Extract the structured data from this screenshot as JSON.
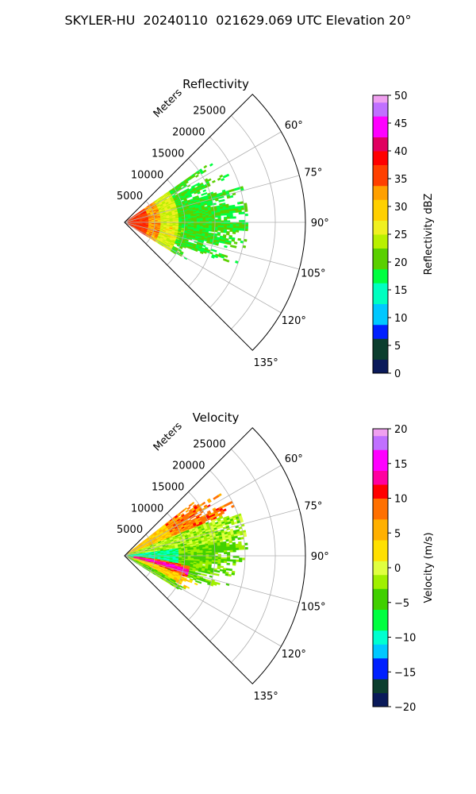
{
  "figure_title": "SKYLER-HU  20240110  021629.069 UTC Elevation 20°",
  "chart_data": [
    {
      "type": "heatmap",
      "title": "Reflectivity",
      "r_axis_label": "Meters",
      "r_ticks": [
        5000,
        10000,
        15000,
        20000,
        25000
      ],
      "r_tick_labels": [
        "5000",
        "10000",
        "15000",
        "20000",
        "25000"
      ],
      "theta_range_deg": [
        45,
        135
      ],
      "theta_ticks_deg": [
        60,
        75,
        90,
        105,
        120,
        135
      ],
      "theta_tick_labels": [
        "60°",
        "75°",
        "90°",
        "105°",
        "120°",
        "135°"
      ],
      "grid": true,
      "colorbar": {
        "label": "Reflectivity dBZ",
        "min": 0,
        "max": 50,
        "ticks": [
          0,
          5,
          10,
          15,
          20,
          25,
          30,
          35,
          40,
          45,
          50
        ],
        "tick_labels": [
          "0",
          "5",
          "10",
          "15",
          "20",
          "25",
          "30",
          "35",
          "40",
          "45",
          "50"
        ]
      },
      "colormap": [
        [
          0,
          "#0a1a5a"
        ],
        [
          3,
          "#0c3e2e"
        ],
        [
          6,
          "#0020ff"
        ],
        [
          9,
          "#00c8ff"
        ],
        [
          13,
          "#00ffc0"
        ],
        [
          16,
          "#00ff40"
        ],
        [
          19,
          "#5ad000"
        ],
        [
          22,
          "#b8f000"
        ],
        [
          25,
          "#f0f020"
        ],
        [
          28,
          "#ffd000"
        ],
        [
          31,
          "#ffa000"
        ],
        [
          34,
          "#ff4000"
        ],
        [
          37,
          "#ff0000"
        ],
        [
          40,
          "#e00060"
        ],
        [
          43,
          "#ff00ff"
        ],
        [
          46,
          "#c070ff"
        ],
        [
          49,
          "#f0a0f0"
        ],
        [
          50,
          "#fff0ff"
        ]
      ],
      "field": "reflectivity"
    },
    {
      "type": "heatmap",
      "title": "Velocity",
      "r_axis_label": "Meters",
      "r_ticks": [
        5000,
        10000,
        15000,
        20000,
        25000
      ],
      "r_tick_labels": [
        "5000",
        "10000",
        "15000",
        "20000",
        "25000"
      ],
      "theta_range_deg": [
        45,
        135
      ],
      "theta_ticks_deg": [
        60,
        75,
        90,
        105,
        120,
        135
      ],
      "theta_tick_labels": [
        "60°",
        "75°",
        "90°",
        "105°",
        "120°",
        "135°"
      ],
      "grid": true,
      "colorbar": {
        "label": "Velocity (m/s)",
        "min": -20,
        "max": 20,
        "ticks": [
          -20,
          -15,
          -10,
          -5,
          0,
          5,
          10,
          15,
          20
        ],
        "tick_labels": [
          "−20",
          "−15",
          "−10",
          "−5",
          "0",
          "5",
          "10",
          "15",
          "20"
        ]
      },
      "colormap": [
        [
          -20,
          "#0a1a5a"
        ],
        [
          -18,
          "#0c3e2e"
        ],
        [
          -16,
          "#0020ff"
        ],
        [
          -13,
          "#00c8ff"
        ],
        [
          -11,
          "#00ffd0"
        ],
        [
          -9,
          "#00ff40"
        ],
        [
          -6,
          "#40d000"
        ],
        [
          -3,
          "#a0f000"
        ],
        [
          -1,
          "#e0ff40"
        ],
        [
          1,
          "#ffe000"
        ],
        [
          4,
          "#ffb000"
        ],
        [
          7,
          "#ff7000"
        ],
        [
          10,
          "#ff0000"
        ],
        [
          12,
          "#ff00a0"
        ],
        [
          14,
          "#ff00ff"
        ],
        [
          17,
          "#c070ff"
        ],
        [
          19,
          "#f0a0f0"
        ],
        [
          20,
          "#fff0ff"
        ]
      ],
      "field": "velocity"
    }
  ]
}
